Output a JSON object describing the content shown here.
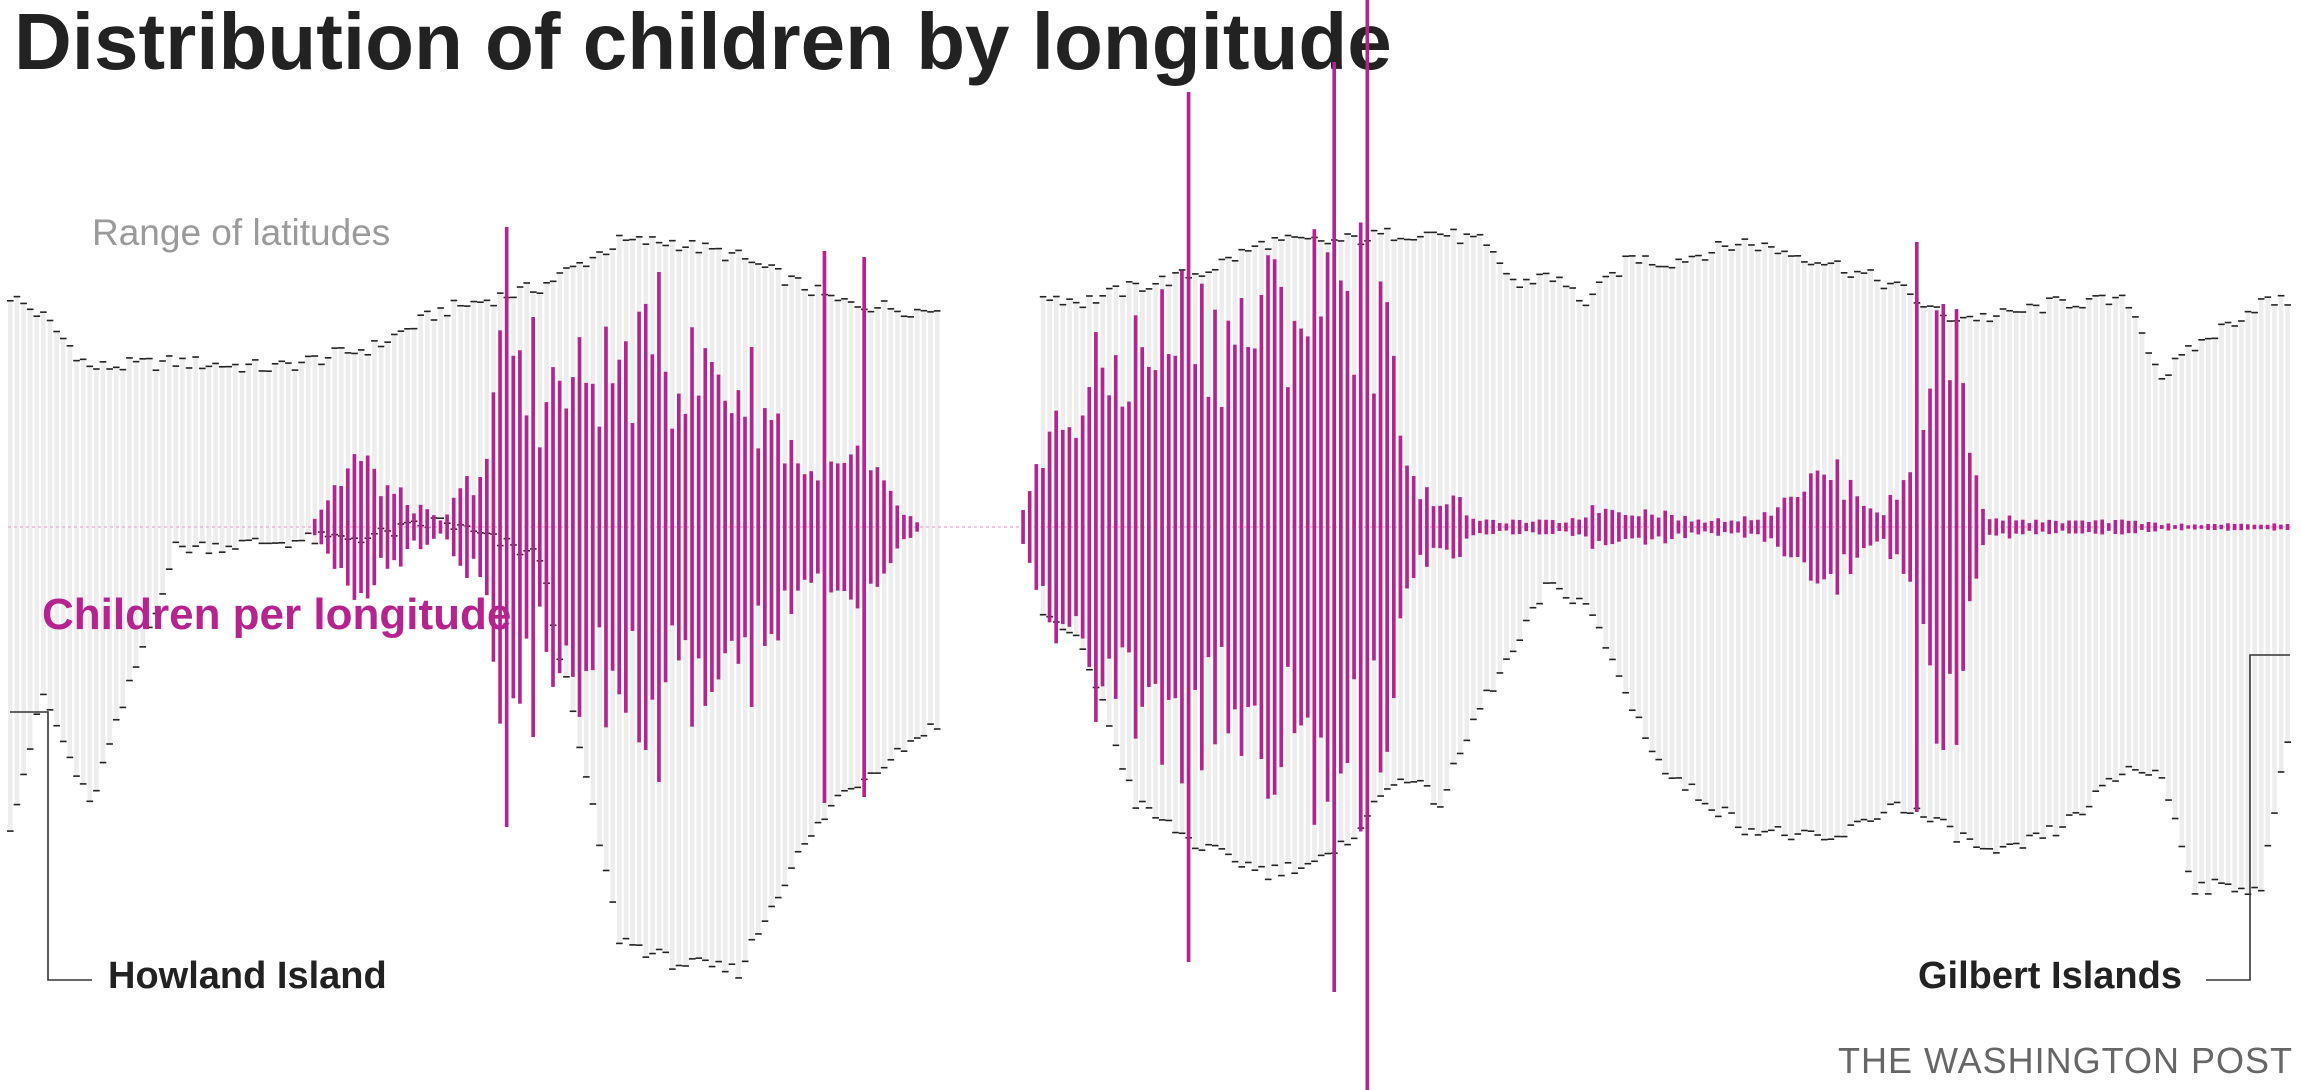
{
  "header": {
    "title": "Distribution of children by longitude"
  },
  "annotations": {
    "range_label": "Range of latitudes",
    "children_label": "Children per longitude",
    "west_end": "Howland Island",
    "east_end": "Gilbert Islands"
  },
  "credit": "THE WASHINGTON POST",
  "colors": {
    "range_fill": "#ededed",
    "range_cap": "#222222",
    "children": "#b5238f",
    "baseline": "#e8b6d6",
    "leader": "#333333"
  },
  "chart_data": {
    "type": "bar",
    "bar_count": 345,
    "range_anchors": [
      [
        0,
        0.77,
        -0.99
      ],
      [
        5,
        0.7,
        -0.56
      ],
      [
        12,
        0.53,
        -0.93
      ],
      [
        25,
        0.55,
        -0.07
      ],
      [
        40,
        0.53,
        -0.05
      ],
      [
        55,
        0.6,
        -0.03
      ],
      [
        65,
        0.72,
        0.02
      ],
      [
        80,
        0.8,
        -0.1
      ],
      [
        92,
        0.95,
        -1.37
      ],
      [
        100,
        0.95,
        -1.45
      ],
      [
        110,
        0.9,
        -1.48
      ],
      [
        118,
        0.82,
        -1.13
      ],
      [
        125,
        0.75,
        -0.9
      ],
      [
        138,
        0.72,
        -0.68
      ],
      [
        145,
        0.75,
        -0.62
      ],
      [
        150,
        null,
        null
      ],
      [
        155,
        0.78,
        -0.27
      ],
      [
        162,
        0.75,
        -0.4
      ],
      [
        170,
        0.8,
        -0.92
      ],
      [
        180,
        0.85,
        -1.07
      ],
      [
        190,
        0.95,
        -1.15
      ],
      [
        200,
        0.95,
        -1.1
      ],
      [
        210,
        0.98,
        -0.82
      ],
      [
        216,
        0.98,
        -0.92
      ],
      [
        222,
        0.95,
        -0.6
      ],
      [
        228,
        0.8,
        -0.38
      ],
      [
        232,
        0.85,
        -0.2
      ],
      [
        238,
        0.75,
        -0.25
      ],
      [
        245,
        0.9,
        -0.6
      ],
      [
        250,
        0.88,
        -0.82
      ],
      [
        262,
        0.95,
        -1.0
      ],
      [
        275,
        0.88,
        -1.05
      ],
      [
        285,
        0.8,
        -0.92
      ],
      [
        292,
        0.7,
        -1.0
      ],
      [
        300,
        0.7,
        -1.1
      ],
      [
        310,
        0.75,
        -1.0
      ],
      [
        320,
        0.75,
        -0.8
      ],
      [
        325,
        0.5,
        -0.83
      ],
      [
        330,
        0.6,
        -1.2
      ],
      [
        340,
        0.75,
        -1.2
      ],
      [
        344,
        0.75,
        -0.72
      ]
    ],
    "children_anchors": [
      [
        0,
        0
      ],
      [
        45,
        0
      ],
      [
        52,
        0.25
      ],
      [
        58,
        0.12
      ],
      [
        65,
        0.02
      ],
      [
        72,
        0.25
      ],
      [
        75,
        0.7
      ],
      [
        78,
        0.45
      ],
      [
        88,
        0.55
      ],
      [
        95,
        0.6
      ],
      [
        105,
        0.55
      ],
      [
        112,
        0.5
      ],
      [
        118,
        0.3
      ],
      [
        122,
        0.15
      ],
      [
        128,
        0.25
      ],
      [
        135,
        0.05
      ],
      [
        138,
        0
      ],
      [
        150,
        0
      ],
      [
        152,
        0.05
      ],
      [
        158,
        0.35
      ],
      [
        165,
        0.55
      ],
      [
        172,
        0.65
      ],
      [
        178,
        0.75
      ],
      [
        185,
        0.7
      ],
      [
        192,
        0.8
      ],
      [
        198,
        0.85
      ],
      [
        205,
        0.88
      ],
      [
        210,
        0.45
      ],
      [
        213,
        0.12
      ],
      [
        218,
        0.1
      ],
      [
        222,
        0.02
      ],
      [
        235,
        0.02
      ],
      [
        240,
        0.07
      ],
      [
        250,
        0.05
      ],
      [
        255,
        0.02
      ],
      [
        265,
        0.04
      ],
      [
        268,
        0.12
      ],
      [
        275,
        0.2
      ],
      [
        283,
        0.05
      ],
      [
        287,
        0.2
      ],
      [
        290,
        0.65
      ],
      [
        294,
        0.7
      ],
      [
        298,
        0.05
      ],
      [
        305,
        0.02
      ],
      [
        320,
        0.02
      ],
      [
        326,
        0.01
      ],
      [
        344,
        0.01
      ]
    ],
    "children_spikes": [
      [
        75,
        1.0
      ],
      [
        79,
        0.7
      ],
      [
        98,
        0.85
      ],
      [
        106,
        0.55
      ],
      [
        123,
        0.92
      ],
      [
        129,
        0.9
      ],
      [
        178,
        1.45
      ],
      [
        200,
        1.55
      ],
      [
        205,
        1.9
      ],
      [
        288,
        0.95
      ]
    ],
    "gaps": [
      141,
      142,
      143,
      144,
      145,
      146,
      147,
      148,
      149,
      150,
      151,
      152
    ]
  }
}
